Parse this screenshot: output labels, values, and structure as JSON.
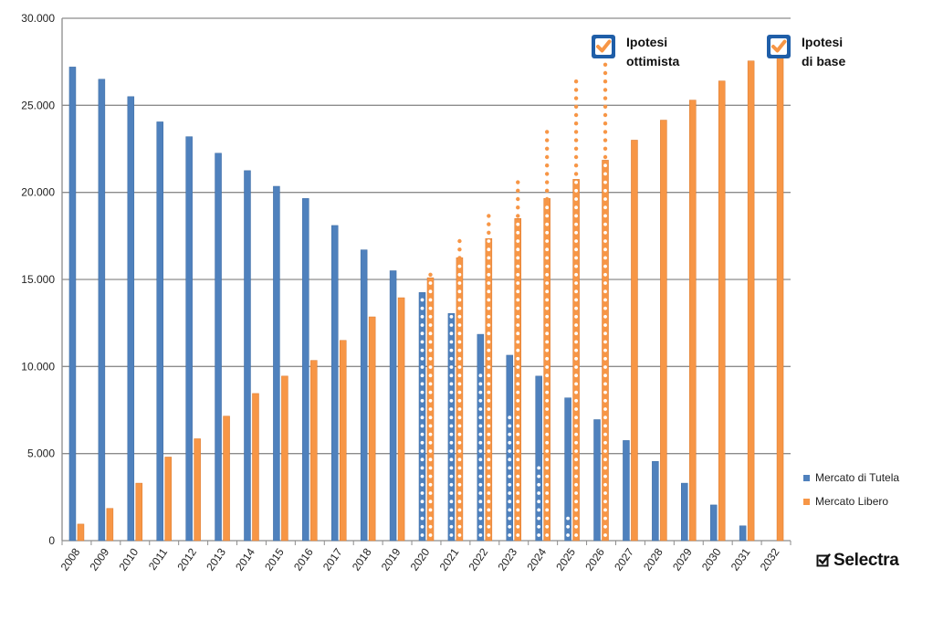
{
  "chart_data": {
    "type": "bar",
    "categories": [
      "2008",
      "2009",
      "2010",
      "2011",
      "2012",
      "2013",
      "2014",
      "2015",
      "2016",
      "2017",
      "2018",
      "2019",
      "2020",
      "2021",
      "2022",
      "2023",
      "2024",
      "2025",
      "2026",
      "2027",
      "2028",
      "2029",
      "2030",
      "2031",
      "2032"
    ],
    "series": [
      {
        "name": "Mercato di Tutela",
        "color": "#4f81bd",
        "values": [
          27200,
          26500,
          25500,
          24050,
          23200,
          22250,
          21250,
          20350,
          19650,
          18100,
          16700,
          15500,
          14250,
          13050,
          11850,
          10650,
          9450,
          8200,
          6950,
          5750,
          4550,
          3300,
          2050,
          850,
          0
        ]
      },
      {
        "name": "Mercato Libero",
        "color": "#f79646",
        "values": [
          950,
          1850,
          3300,
          4800,
          5850,
          7150,
          8450,
          9450,
          10350,
          11500,
          12850,
          13950,
          15100,
          16250,
          17350,
          18500,
          19650,
          20750,
          21850,
          23000,
          24150,
          25300,
          26400,
          27550,
          28700
        ]
      }
    ],
    "optimistic_dotted": {
      "from_category": "2020",
      "to_category": "2026",
      "tutela_values": [
        14250,
        13050,
        10050,
        7250,
        4450,
        1850,
        0
      ],
      "libero_values": [
        15600,
        17250,
        19100,
        21050,
        23550,
        26400,
        27550
      ]
    },
    "ylim": [
      0,
      30000
    ],
    "yticks": [
      "0",
      "5.000",
      "10.000",
      "15.000",
      "20.000",
      "25.000",
      "30.000"
    ],
    "ytick_values": [
      0,
      5000,
      10000,
      15000,
      20000,
      25000,
      30000
    ],
    "grid": true,
    "legend_position": "right",
    "title": "",
    "xlabel": "",
    "ylabel": ""
  },
  "annotations": {
    "optimistic": {
      "line1": "Ipotesi",
      "line2": "ottimista"
    },
    "base": {
      "line1": "Ipotesi",
      "line2": "di base"
    }
  },
  "legend": {
    "tutela_label": "Mercato di Tutela",
    "libero_label": "Mercato Libero"
  },
  "logo": {
    "text": "Selectra",
    "icon": "checkbox-icon"
  },
  "colors": {
    "tutela": "#4f81bd",
    "libero": "#f79646",
    "grid": "#8c8c8c",
    "badge": "#1f5ea8"
  }
}
